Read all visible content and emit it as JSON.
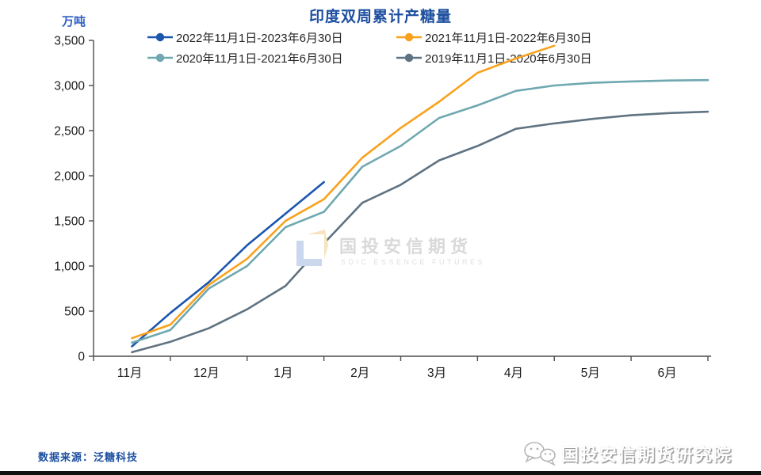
{
  "title": "印度双周累计产糖量",
  "unit": "万吨",
  "chart_data": {
    "type": "line",
    "title": "印度双周累计产糖量",
    "ylabel": "万吨",
    "ylim": [
      0,
      3500
    ],
    "y_tick_labels": [
      "0",
      "500",
      "1,000",
      "1,500",
      "2,000",
      "2,500",
      "3,000",
      "3,500"
    ],
    "x_month_labels": [
      "11月",
      "12月",
      "1月",
      "2月",
      "3月",
      "4月",
      "5月",
      "6月"
    ],
    "x_slots": [
      "11月15日",
      "11月30日",
      "12月15日",
      "12月31日",
      "1月15日",
      "1月31日",
      "2月15日",
      "2月28日",
      "3月15日",
      "3月31日",
      "4月15日",
      "4月30日",
      "5月15日",
      "5月31日",
      "6月15日",
      "6月30日"
    ],
    "grid": false,
    "legend_position": "top",
    "series": [
      {
        "name": "2022年11月1日-2023年6月30日",
        "color": "#1a56ae",
        "values": [
          110,
          480,
          820,
          1230,
          1580,
          1930
        ]
      },
      {
        "name": "2021年11月1日-2022年6月30日",
        "color": "#f9a11b",
        "values": [
          200,
          350,
          790,
          1080,
          1500,
          1740,
          2200,
          2530,
          2820,
          3140,
          3300,
          3440
        ]
      },
      {
        "name": "2020年11月1日-2021年6月30日",
        "color": "#6fa8b0",
        "values": [
          150,
          290,
          750,
          1000,
          1430,
          1600,
          2100,
          2330,
          2640,
          2780,
          2940,
          3000,
          3030,
          3045,
          3055,
          3060
        ]
      },
      {
        "name": "2019年11月1日-2020年6月30日",
        "color": "#5f7382",
        "values": [
          45,
          160,
          310,
          520,
          780,
          1250,
          1700,
          1900,
          2170,
          2330,
          2520,
          2580,
          2630,
          2670,
          2695,
          2710
        ]
      }
    ]
  },
  "watermark": {
    "cn": "国投安信期货",
    "en": "SDIC ESSENCE FUTURES"
  },
  "footer": {
    "source": "数据来源：泛糖科技",
    "brand": "国投安信期货研究院"
  },
  "colors": {
    "title_blue": "#1d4fa0",
    "axis": "#4d4d4d",
    "tick_text": "#1a1a1a",
    "watermark_gray": "#d9d9d9"
  }
}
